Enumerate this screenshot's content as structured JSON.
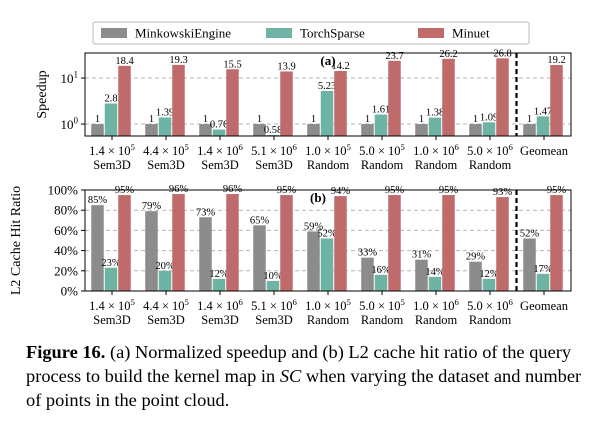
{
  "legend": [
    {
      "name": "MinkowskiEngine",
      "color": "#8c8c8c"
    },
    {
      "name": "TorchSparse",
      "color": "#6fb3a4"
    },
    {
      "name": "Minuet",
      "color": "#c06b6b"
    }
  ],
  "categories": [
    {
      "top": "1.4 × 10^5",
      "base": "1.4 × 10",
      "exp": "5",
      "bottom": "Sem3D"
    },
    {
      "top": "4.4 × 10^5",
      "base": "4.4 × 10",
      "exp": "5",
      "bottom": "Sem3D"
    },
    {
      "top": "1.4 × 10^6",
      "base": "1.4 × 10",
      "exp": "6",
      "bottom": "Sem3D"
    },
    {
      "top": "5.1 × 10^6",
      "base": "5.1 × 10",
      "exp": "6",
      "bottom": "Sem3D"
    },
    {
      "top": "1.0 × 10^5",
      "base": "1.0 × 10",
      "exp": "5",
      "bottom": "Random"
    },
    {
      "top": "5.0 × 10^5",
      "base": "5.0 × 10",
      "exp": "5",
      "bottom": "Random"
    },
    {
      "top": "1.0 × 10^6",
      "base": "1.0 × 10",
      "exp": "6",
      "bottom": "Random"
    },
    {
      "top": "5.0 × 10^6",
      "base": "5.0 × 10",
      "exp": "6",
      "bottom": "Random"
    },
    {
      "top": "Geomean",
      "base": "Geomean",
      "exp": "",
      "bottom": ""
    }
  ],
  "chart_data": [
    {
      "type": "bar",
      "panel": "(a)",
      "ylabel": "Speedup",
      "yscale": "log",
      "ylim": [
        0.55,
        35
      ],
      "yticks": [
        {
          "value": 1,
          "base": "10",
          "exp": "0"
        },
        {
          "value": 10,
          "base": "10",
          "exp": "1"
        }
      ],
      "grid": true,
      "series": [
        {
          "name": "MinkowskiEngine",
          "values": [
            1,
            1,
            1,
            1,
            1,
            1,
            1,
            1,
            1
          ],
          "labels": [
            "1",
            "1",
            "1",
            "1",
            "1",
            "1",
            "1",
            "1",
            "1"
          ]
        },
        {
          "name": "TorchSparse",
          "values": [
            2.8,
            1.39,
            0.76,
            0.58,
            5.23,
            1.61,
            1.38,
            1.09,
            1.47
          ],
          "labels": [
            "2.8",
            "1.39",
            "0.76",
            "0.58",
            "5.23",
            "1.61",
            "1.38",
            "1.09",
            "1.47"
          ]
        },
        {
          "name": "Minuet",
          "values": [
            18.4,
            19.3,
            15.5,
            13.9,
            14.2,
            23.7,
            26.2,
            26.8,
            19.2
          ],
          "labels": [
            "18.4",
            "19.3",
            "15.5",
            "13.9",
            "14.2",
            "23.7",
            "26.2",
            "26.8",
            "19.2"
          ]
        }
      ]
    },
    {
      "type": "bar",
      "panel": "(b)",
      "ylabel": "L2 Cache Hit Ratio",
      "ylim": [
        0,
        100
      ],
      "yticks": [
        "0%",
        "20%",
        "40%",
        "60%",
        "80%",
        "100%"
      ],
      "grid": true,
      "series": [
        {
          "name": "MinkowskiEngine",
          "values": [
            85,
            79,
            73,
            65,
            59,
            33,
            31,
            29,
            52
          ],
          "labels": [
            "85%",
            "79%",
            "73%",
            "65%",
            "59%",
            "33%",
            "31%",
            "29%",
            "52%"
          ]
        },
        {
          "name": "TorchSparse",
          "values": [
            23,
            20,
            12,
            10,
            52,
            16,
            14,
            12,
            17
          ],
          "labels": [
            "23%",
            "20%",
            "12%",
            "10%",
            "52%",
            "16%",
            "14%",
            "12%",
            "17%"
          ]
        },
        {
          "name": "Minuet",
          "values": [
            95,
            96,
            96,
            95,
            94,
            95,
            95,
            93,
            95
          ],
          "labels": [
            "95%",
            "96%",
            "96%",
            "95%",
            "94%",
            "95%",
            "95%",
            "93%",
            "95%"
          ]
        }
      ]
    }
  ],
  "caption": {
    "label": "Figure 16.",
    "text_before": " (a) Normalized speedup and (b) L2 cache hit ratio of the query process to build the kernel map in ",
    "emph": "SC",
    "text_after": " when varying the dataset and number of points in the point cloud."
  }
}
